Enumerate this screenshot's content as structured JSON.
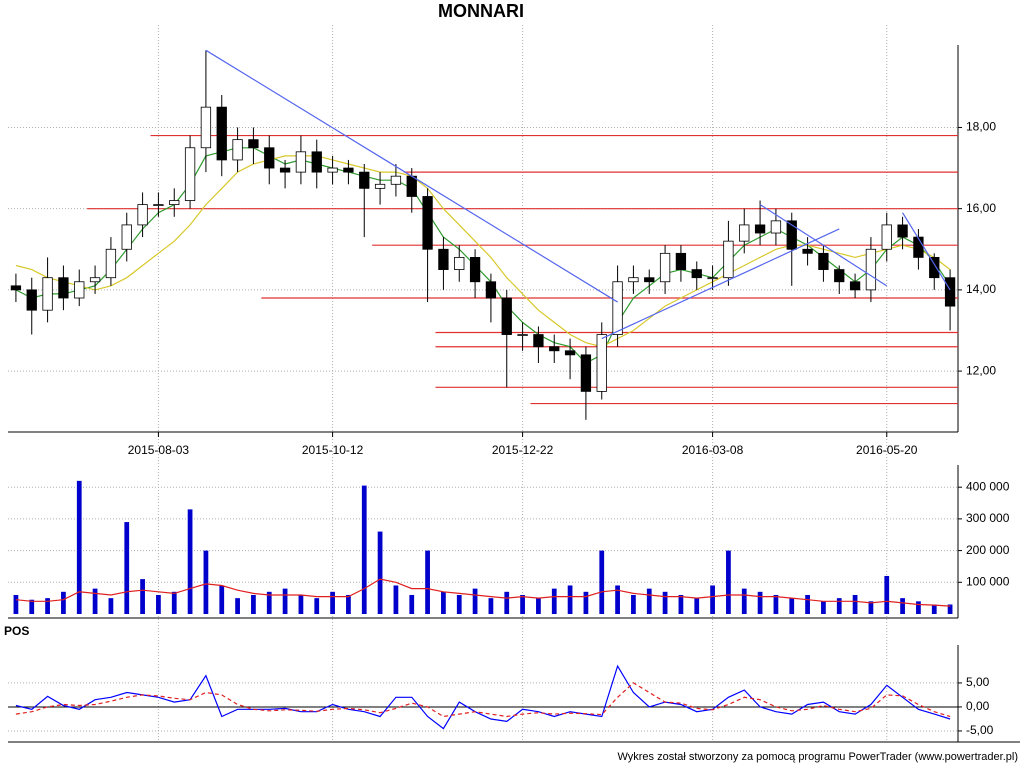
{
  "chart_data": [
    {
      "type": "candlestick",
      "title": "MONNARI",
      "categories": [
        null,
        null,
        null,
        null,
        null,
        null,
        null,
        null,
        null,
        "2015-08-03",
        null,
        null,
        null,
        null,
        null,
        null,
        null,
        null,
        null,
        null,
        "2015-10-12",
        null,
        null,
        null,
        null,
        null,
        null,
        null,
        null,
        null,
        null,
        null,
        "2015-12-22",
        null,
        null,
        null,
        null,
        null,
        null,
        null,
        null,
        null,
        null,
        null,
        "2016-03-08",
        null,
        null,
        null,
        null,
        null,
        null,
        null,
        null,
        null,
        null,
        "2016-05-20",
        null,
        null,
        null,
        null
      ],
      "open": [
        14.1,
        14.0,
        13.5,
        14.3,
        13.8,
        14.2,
        14.3,
        15.0,
        15.6,
        16.1,
        16.1,
        16.2,
        17.5,
        18.5,
        17.2,
        17.7,
        17.5,
        17.0,
        16.9,
        17.4,
        16.9,
        17.0,
        16.9,
        16.5,
        16.6,
        16.8,
        16.3,
        15.0,
        14.5,
        14.8,
        14.2,
        13.8,
        12.9,
        12.9,
        12.6,
        12.5,
        12.4,
        11.5,
        12.9,
        14.2,
        14.3,
        14.2,
        14.9,
        14.5,
        14.3,
        14.3,
        15.2,
        15.6,
        15.4,
        15.7,
        15.0,
        14.9,
        14.5,
        14.2,
        14.0,
        15.0,
        15.6,
        15.3,
        14.8,
        14.3
      ],
      "high": [
        14.4,
        14.3,
        14.8,
        14.6,
        14.5,
        14.6,
        15.3,
        15.9,
        16.4,
        16.4,
        16.5,
        17.8,
        19.9,
        18.8,
        18.0,
        18.0,
        17.8,
        17.2,
        17.8,
        17.7,
        17.3,
        17.2,
        17.1,
        16.9,
        17.1,
        17.0,
        16.5,
        15.3,
        15.1,
        15.0,
        14.4,
        14.0,
        13.2,
        13.1,
        12.9,
        12.8,
        12.6,
        13.2,
        14.6,
        14.6,
        14.5,
        15.1,
        15.1,
        14.7,
        14.6,
        15.7,
        16.0,
        16.2,
        16.0,
        15.9,
        15.3,
        15.1,
        14.6,
        14.4,
        15.3,
        15.9,
        15.8,
        15.5,
        14.9,
        14.5
      ],
      "low": [
        13.7,
        12.9,
        13.2,
        13.5,
        13.6,
        13.9,
        14.1,
        14.7,
        15.3,
        15.8,
        15.8,
        16.0,
        16.9,
        16.8,
        16.9,
        17.1,
        16.6,
        16.5,
        16.6,
        16.5,
        16.6,
        16.6,
        15.3,
        16.1,
        16.3,
        15.9,
        13.7,
        14.0,
        14.2,
        13.8,
        13.2,
        11.6,
        12.5,
        12.2,
        12.2,
        11.8,
        10.8,
        11.3,
        12.6,
        13.9,
        13.9,
        13.9,
        14.2,
        14.0,
        14.0,
        14.1,
        14.9,
        15.1,
        15.1,
        14.1,
        14.6,
        14.2,
        13.9,
        13.8,
        13.7,
        14.7,
        15.0,
        14.5,
        14.0,
        13.0
      ],
      "close": [
        14.0,
        13.5,
        14.3,
        13.8,
        14.2,
        14.3,
        15.0,
        15.6,
        16.1,
        16.1,
        16.2,
        17.5,
        18.5,
        17.2,
        17.7,
        17.5,
        17.0,
        16.9,
        17.4,
        16.9,
        17.0,
        16.9,
        16.5,
        16.6,
        16.8,
        16.3,
        15.0,
        14.5,
        14.8,
        14.2,
        13.8,
        12.9,
        12.9,
        12.6,
        12.5,
        12.4,
        11.5,
        12.9,
        14.2,
        14.3,
        14.2,
        14.9,
        14.5,
        14.3,
        14.3,
        15.2,
        15.6,
        15.4,
        15.7,
        15.0,
        14.9,
        14.5,
        14.2,
        14.0,
        15.0,
        15.6,
        15.3,
        14.8,
        14.3,
        13.6
      ],
      "up_color": "#ffffff",
      "down_color": "#000000",
      "moving_averages": [
        {
          "color": "#2e9a2e",
          "values": [
            14.0,
            13.8,
            13.9,
            13.9,
            14.0,
            14.1,
            14.5,
            15.0,
            15.5,
            15.9,
            16.1,
            16.6,
            17.3,
            17.4,
            17.5,
            17.5,
            17.3,
            17.1,
            17.2,
            17.1,
            17.0,
            16.9,
            16.8,
            16.7,
            16.7,
            16.5,
            15.9,
            15.3,
            15.0,
            14.6,
            14.2,
            13.6,
            13.2,
            12.9,
            12.7,
            12.6,
            12.2,
            12.4,
            13.2,
            13.8,
            14.1,
            14.4,
            14.5,
            14.4,
            14.3,
            14.7,
            15.1,
            15.3,
            15.5,
            15.3,
            15.1,
            14.8,
            14.5,
            14.2,
            14.5,
            15.0,
            15.3,
            15.1,
            14.7,
            14.1
          ]
        },
        {
          "color": "#d8c82a",
          "values": [
            14.6,
            14.5,
            14.3,
            14.2,
            14.1,
            14.0,
            14.1,
            14.3,
            14.6,
            14.9,
            15.2,
            15.6,
            16.1,
            16.5,
            16.9,
            17.1,
            17.2,
            17.3,
            17.3,
            17.3,
            17.2,
            17.1,
            17.0,
            16.9,
            16.9,
            16.8,
            16.5,
            16.0,
            15.6,
            15.2,
            14.8,
            14.3,
            13.9,
            13.5,
            13.2,
            12.9,
            12.7,
            12.6,
            12.8,
            13.0,
            13.3,
            13.6,
            13.8,
            14.0,
            14.2,
            14.4,
            14.6,
            14.8,
            15.0,
            15.1,
            15.1,
            15.0,
            14.9,
            14.8,
            14.9,
            15.0,
            15.1,
            15.0,
            14.8,
            14.5
          ]
        }
      ],
      "levels": {
        "color": "#e03030",
        "lines": [
          {
            "value": 17.8,
            "start": 9
          },
          {
            "value": 16.9,
            "start": 25
          },
          {
            "value": 16.0,
            "start": 5
          },
          {
            "value": 15.1,
            "start": 23
          },
          {
            "value": 13.8,
            "start": 16
          },
          {
            "value": 12.95,
            "start": 27
          },
          {
            "value": 12.6,
            "start": 27
          },
          {
            "value": 11.6,
            "start": 27
          },
          {
            "value": 11.2,
            "start": 33
          }
        ]
      },
      "trendlines": {
        "color": "#5566ee",
        "lines": [
          {
            "from": [
              12,
              19.9
            ],
            "to": [
              38,
              13.7
            ]
          },
          {
            "from": [
              37,
              12.8
            ],
            "to": [
              52,
              15.5
            ]
          },
          {
            "from": [
              47,
              16.1
            ],
            "to": [
              55,
              14.1
            ]
          },
          {
            "from": [
              56,
              15.9
            ],
            "to": [
              59,
              14.0
            ]
          }
        ]
      },
      "ylim": [
        10.5,
        20.4
      ],
      "yticks": [
        {
          "value": 12,
          "label": "12,00"
        },
        {
          "value": 14,
          "label": "14,00"
        },
        {
          "value": 16,
          "label": "16,00"
        },
        {
          "value": 18,
          "label": "18,00"
        }
      ],
      "grid": true
    },
    {
      "type": "bar",
      "color": "#0000cc",
      "values": [
        60000,
        45000,
        50000,
        70000,
        420000,
        80000,
        50000,
        290000,
        110000,
        60000,
        70000,
        330000,
        200000,
        90000,
        50000,
        60000,
        70000,
        80000,
        60000,
        50000,
        70000,
        60000,
        405000,
        260000,
        90000,
        60000,
        200000,
        70000,
        60000,
        80000,
        50000,
        70000,
        60000,
        50000,
        80000,
        90000,
        70000,
        200000,
        90000,
        60000,
        80000,
        70000,
        60000,
        50000,
        90000,
        200000,
        80000,
        70000,
        60000,
        50000,
        60000,
        40000,
        50000,
        60000,
        40000,
        120000,
        50000,
        40000,
        30000,
        30000
      ],
      "average": {
        "color": "#e02020",
        "values": [
          45000,
          40000,
          40000,
          45000,
          70000,
          65000,
          60000,
          70000,
          75000,
          70000,
          65000,
          80000,
          95000,
          90000,
          75000,
          65000,
          60000,
          60000,
          60000,
          55000,
          55000,
          55000,
          80000,
          110000,
          100000,
          80000,
          80000,
          70000,
          65000,
          60000,
          55000,
          50000,
          55000,
          50000,
          55000,
          55000,
          55000,
          70000,
          75000,
          65000,
          60000,
          55000,
          55000,
          50000,
          55000,
          60000,
          60000,
          55000,
          55000,
          50000,
          45000,
          40000,
          40000,
          40000,
          35000,
          40000,
          35000,
          30000,
          28000,
          25000
        ]
      },
      "ylim": [
        0,
        470000
      ],
      "yticks": [
        {
          "value": 100000,
          "label": "100 000"
        },
        {
          "value": 200000,
          "label": "200 000"
        },
        {
          "value": 300000,
          "label": "300 000"
        },
        {
          "value": 400000,
          "label": "400 000"
        }
      ],
      "grid": true
    },
    {
      "type": "line",
      "title": "POS",
      "series": [
        {
          "color": "#0000ff",
          "dashed": false,
          "values": [
            0.3,
            -0.5,
            2.2,
            0.3,
            -0.5,
            1.5,
            2.0,
            3.0,
            2.5,
            2.0,
            1.0,
            1.5,
            6.5,
            -2.0,
            -0.5,
            -0.5,
            -0.5,
            -0.3,
            -1.0,
            -1.0,
            0.5,
            -0.5,
            -1.0,
            -2.0,
            2.0,
            2.0,
            -2.0,
            -4.5,
            1.0,
            -1.0,
            -2.5,
            -3.0,
            -0.5,
            -1.0,
            -2.0,
            -1.0,
            -1.5,
            -2.0,
            8.5,
            3.0,
            0.0,
            1.0,
            0.5,
            -1.0,
            -0.5,
            2.0,
            3.5,
            0.0,
            -1.0,
            -1.5,
            0.5,
            1.0,
            -1.0,
            -1.5,
            0.5,
            4.5,
            2.0,
            -0.5,
            -1.5,
            -2.5
          ]
        },
        {
          "color": "#e02020",
          "dashed": true,
          "values": [
            -1.5,
            -1.0,
            0.0,
            0.5,
            0.3,
            0.5,
            1.2,
            2.0,
            2.5,
            2.3,
            1.8,
            1.5,
            3.0,
            2.5,
            0.5,
            -0.5,
            -0.8,
            -0.6,
            -0.7,
            -0.9,
            -0.5,
            -0.3,
            -0.6,
            -1.2,
            -0.3,
            0.8,
            0.0,
            -2.0,
            -1.5,
            -1.0,
            -1.5,
            -2.0,
            -1.5,
            -1.2,
            -1.5,
            -1.3,
            -1.4,
            -1.6,
            2.0,
            5.0,
            3.0,
            1.0,
            0.8,
            -0.3,
            -0.6,
            0.5,
            2.0,
            1.5,
            0.0,
            -0.8,
            -0.5,
            0.3,
            -0.5,
            -1.0,
            -0.3,
            2.5,
            2.3,
            0.5,
            -1.0,
            -2.0
          ]
        }
      ],
      "ylim": [
        -7.3,
        12.9
      ],
      "yticks": [
        {
          "value": -5,
          "label": "-5,00"
        },
        {
          "value": 0,
          "label": "0,00"
        },
        {
          "value": 5,
          "label": "5,00"
        }
      ],
      "grid": true
    }
  ],
  "footer": "Wykres został stworzony za pomocą programu PowerTrader (www.powertrader.pl)"
}
